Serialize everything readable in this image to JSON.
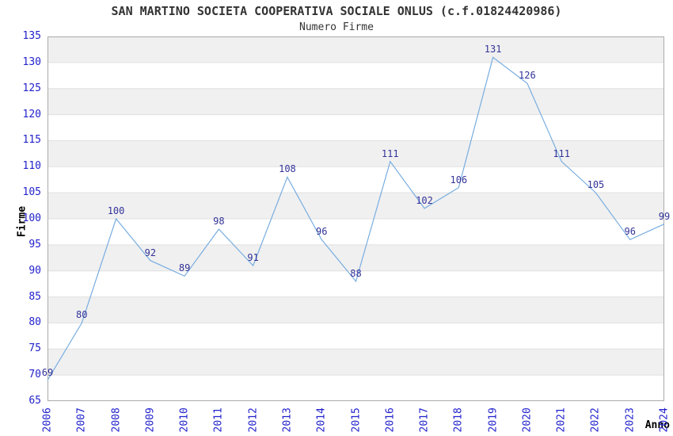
{
  "chart_data": {
    "type": "line",
    "title": "SAN MARTINO SOCIETA COOPERATIVA SOCIALE ONLUS (c.f.01824420986)",
    "subtitle": "Numero Firme",
    "xlabel": "Anno",
    "ylabel": "Firme",
    "categories": [
      "2006",
      "2007",
      "2008",
      "2009",
      "2010",
      "2011",
      "2012",
      "2013",
      "2014",
      "2015",
      "2016",
      "2017",
      "2018",
      "2019",
      "2020",
      "2021",
      "2022",
      "2023",
      "2024"
    ],
    "series": [
      {
        "name": "Numero Firme",
        "values": [
          69,
          80,
          100,
          92,
          89,
          98,
          91,
          108,
          96,
          88,
          111,
          102,
          106,
          131,
          126,
          111,
          105,
          96,
          99
        ]
      }
    ],
    "ylim": [
      65,
      135
    ],
    "ytick_step": 5,
    "yticks": [
      65,
      70,
      75,
      80,
      85,
      90,
      95,
      100,
      105,
      110,
      115,
      120,
      125,
      130,
      135
    ],
    "grid": "horizontal",
    "banding": "alternating-gray-rows-every-5-units",
    "legend": "none",
    "point_labels_visible": true,
    "colors": {
      "line": "#78ade0",
      "tick_labels": "#2222cc",
      "point_labels": "#333399",
      "band": "#f0f0f0",
      "gridline": "#e0e0e0",
      "border": "#aaaaaa",
      "title": "#333333",
      "axis_titles": "#000000",
      "background": "#ffffff"
    }
  }
}
